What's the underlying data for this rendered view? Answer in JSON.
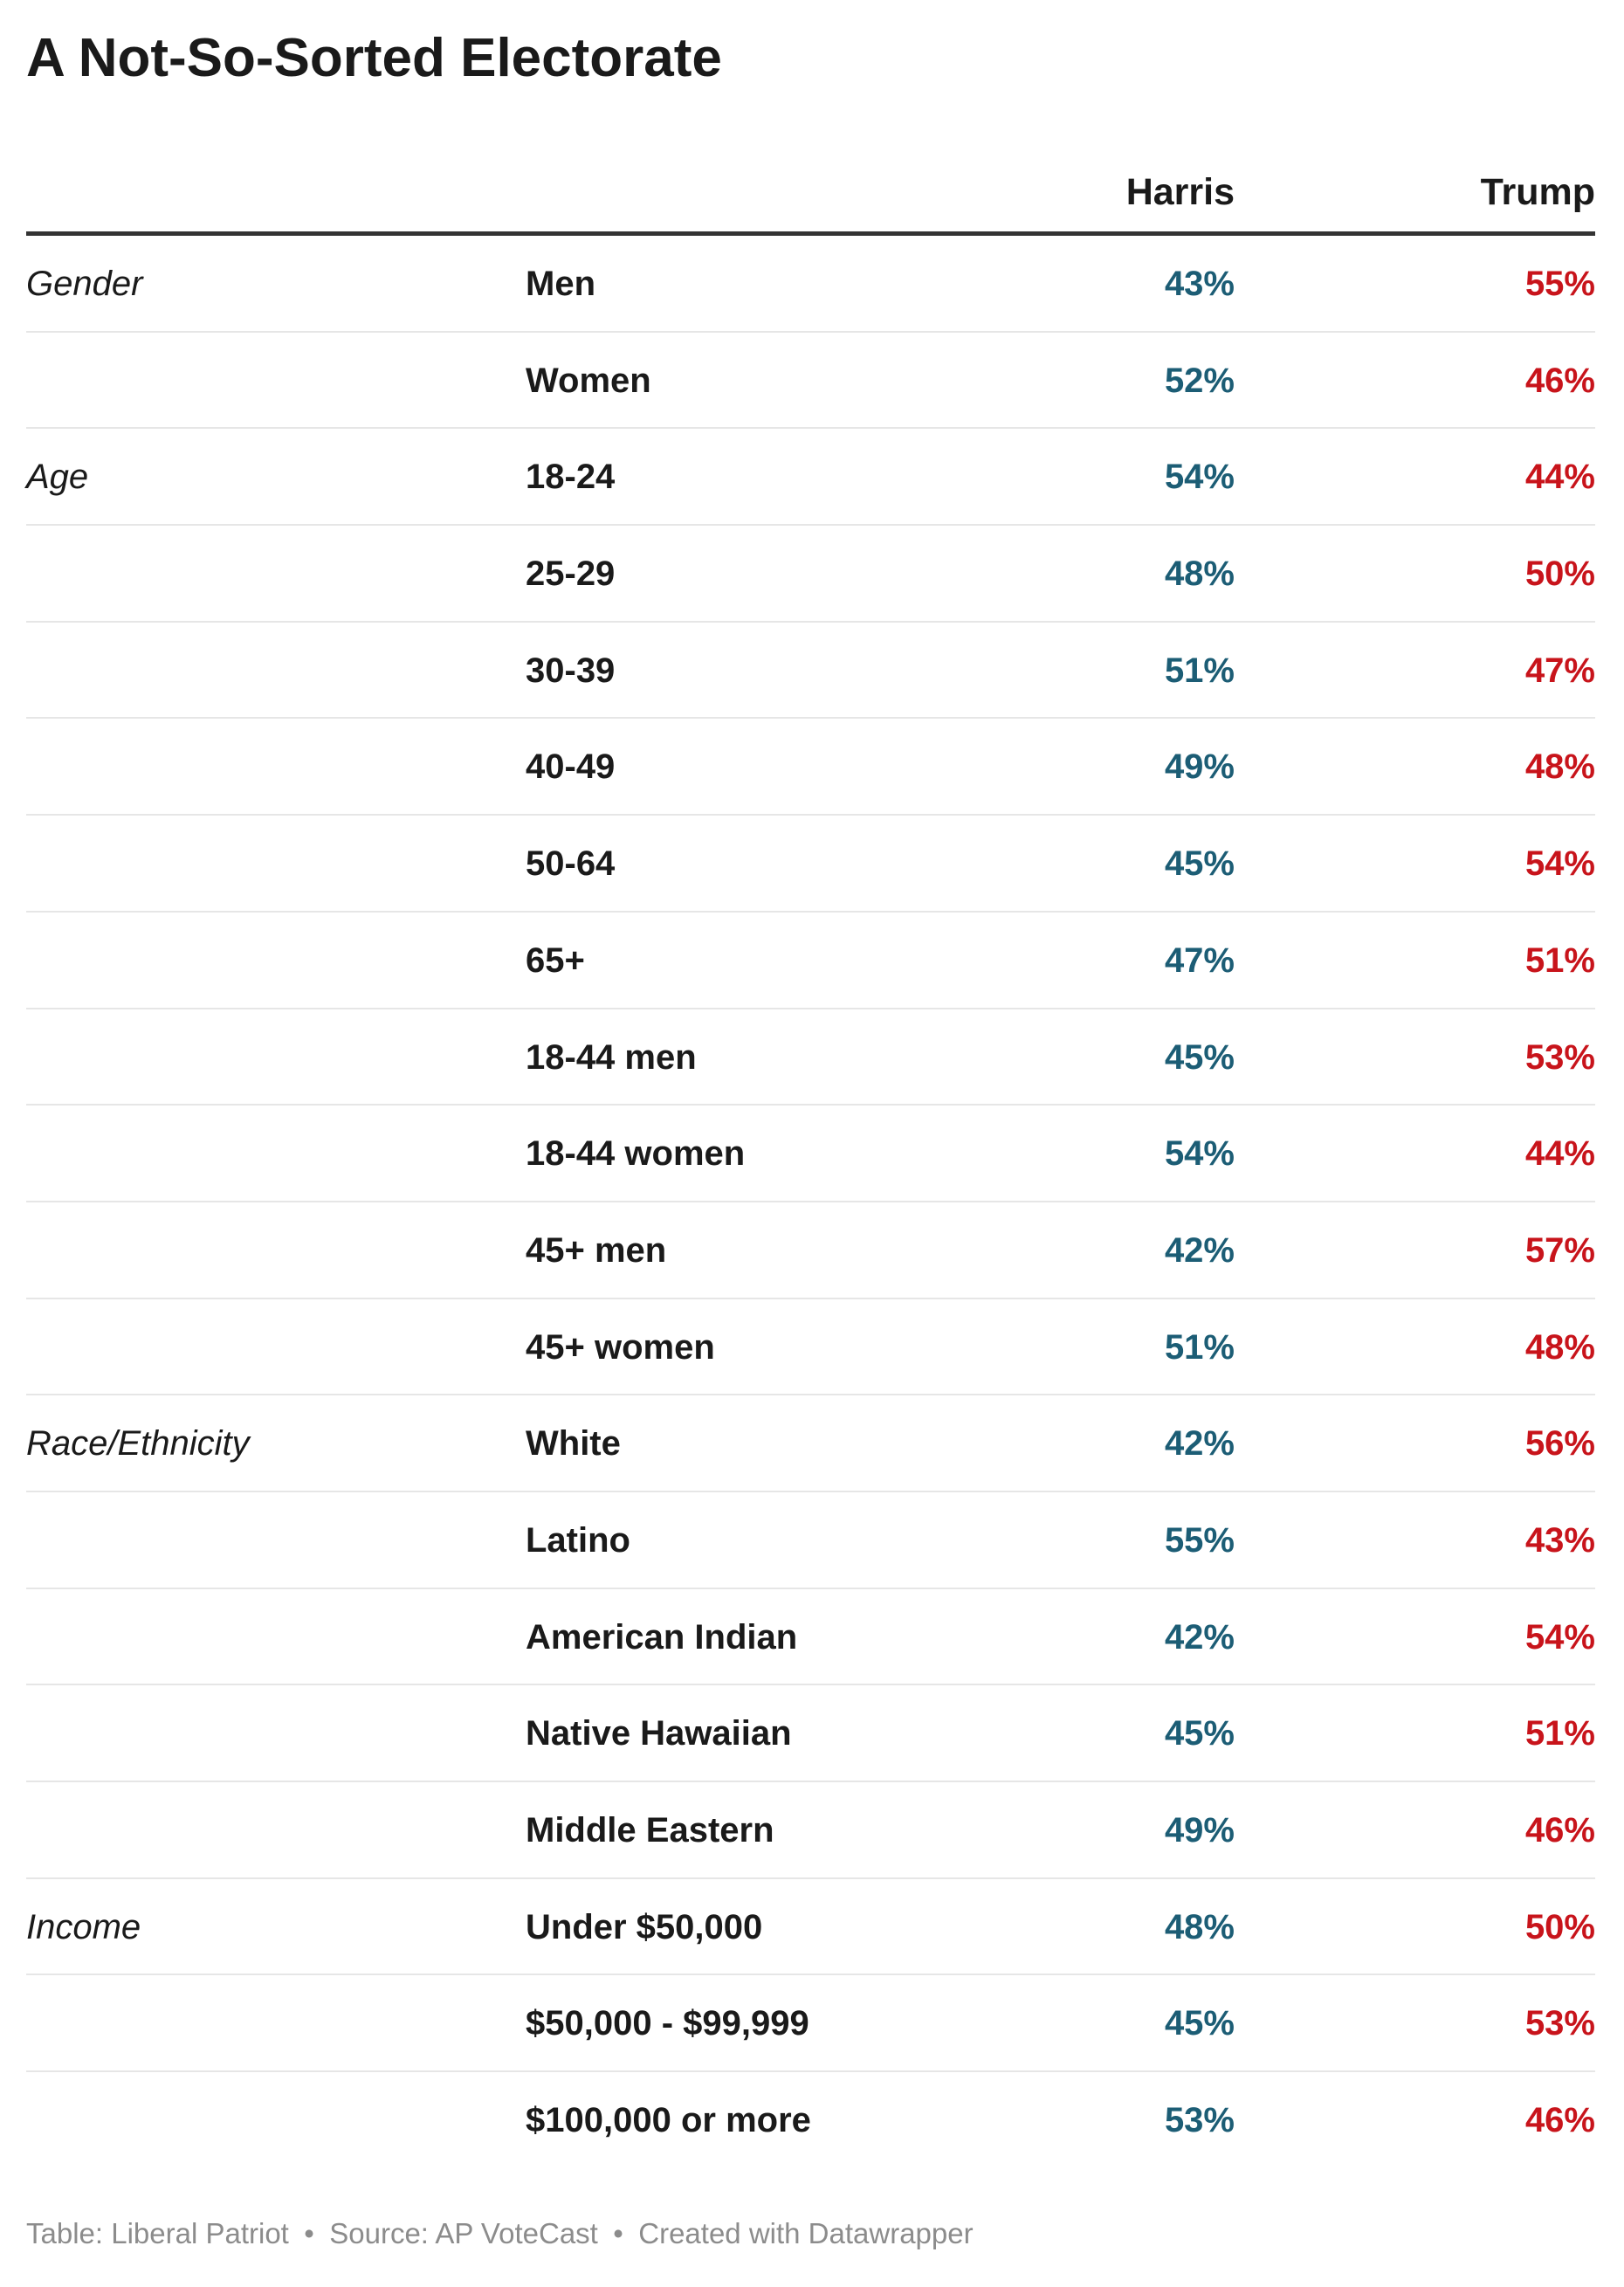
{
  "title": "A Not-So-Sorted Electorate",
  "columns": {
    "harris": "Harris",
    "trump": "Trump"
  },
  "colors": {
    "harris": "#1c5d75",
    "trump": "#c8141b",
    "text": "#1a1a1a",
    "footer": "#8c8c8c"
  },
  "footer": {
    "table_by": "Table: Liberal Patriot",
    "separator": "•",
    "source": "Source: AP VoteCast",
    "created_with": "Created with Datawrapper"
  },
  "chart_data": {
    "type": "table",
    "title": "A Not-So-Sorted Electorate",
    "columns": [
      "",
      "",
      "Harris",
      "Trump"
    ],
    "rows": [
      {
        "category": "Gender",
        "group": "Men",
        "harris": "43%",
        "trump": "55%"
      },
      {
        "category": "",
        "group": "Women",
        "harris": "52%",
        "trump": "46%"
      },
      {
        "category": "Age",
        "group": "18-24",
        "harris": "54%",
        "trump": "44%"
      },
      {
        "category": "",
        "group": "25-29",
        "harris": "48%",
        "trump": "50%"
      },
      {
        "category": "",
        "group": "30-39",
        "harris": "51%",
        "trump": "47%"
      },
      {
        "category": "",
        "group": "40-49",
        "harris": "49%",
        "trump": "48%"
      },
      {
        "category": "",
        "group": "50-64",
        "harris": "45%",
        "trump": "54%"
      },
      {
        "category": "",
        "group": "65+",
        "harris": "47%",
        "trump": "51%"
      },
      {
        "category": "",
        "group": "18-44 men",
        "harris": "45%",
        "trump": "53%"
      },
      {
        "category": "",
        "group": "18-44 women",
        "harris": "54%",
        "trump": "44%"
      },
      {
        "category": "",
        "group": "45+ men",
        "harris": "42%",
        "trump": "57%"
      },
      {
        "category": "",
        "group": "45+ women",
        "harris": "51%",
        "trump": "48%"
      },
      {
        "category": "Race/Ethnicity",
        "group": "White",
        "harris": "42%",
        "trump": "56%"
      },
      {
        "category": "",
        "group": "Latino",
        "harris": "55%",
        "trump": "43%"
      },
      {
        "category": "",
        "group": "American Indian",
        "harris": "42%",
        "trump": "54%"
      },
      {
        "category": "",
        "group": "Native Hawaiian",
        "harris": "45%",
        "trump": "51%"
      },
      {
        "category": "",
        "group": "Middle Eastern",
        "harris": "49%",
        "trump": "46%"
      },
      {
        "category": "Income",
        "group": "Under $50,000",
        "harris": "48%",
        "trump": "50%"
      },
      {
        "category": "",
        "group": "$50,000 - $99,999",
        "harris": "45%",
        "trump": "53%"
      },
      {
        "category": "",
        "group": "$100,000 or more",
        "harris": "53%",
        "trump": "46%"
      }
    ]
  }
}
